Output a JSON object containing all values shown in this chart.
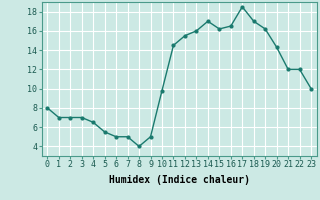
{
  "x": [
    0,
    1,
    2,
    3,
    4,
    5,
    6,
    7,
    8,
    9,
    10,
    11,
    12,
    13,
    14,
    15,
    16,
    17,
    18,
    19,
    20,
    21,
    22,
    23
  ],
  "y": [
    8,
    7,
    7,
    7,
    6.5,
    5.5,
    5,
    5,
    4,
    5,
    9.8,
    14.5,
    15.5,
    16,
    17,
    16.2,
    16.5,
    18.5,
    17,
    16.2,
    14.3,
    12,
    12,
    10
  ],
  "line_color": "#1a7a6e",
  "marker": "o",
  "marker_size": 2,
  "bg_color": "#cce9e4",
  "grid_color": "#ffffff",
  "xlabel": "Humidex (Indice chaleur)",
  "ylabel": "",
  "title": "",
  "xlim": [
    -0.5,
    23.5
  ],
  "ylim": [
    3,
    19
  ],
  "yticks": [
    4,
    6,
    8,
    10,
    12,
    14,
    16,
    18
  ],
  "xtick_labels": [
    "0",
    "1",
    "2",
    "3",
    "4",
    "5",
    "6",
    "7",
    "8",
    "9",
    "10",
    "11",
    "12",
    "13",
    "14",
    "15",
    "16",
    "17",
    "18",
    "19",
    "20",
    "21",
    "22",
    "23"
  ],
  "xlabel_fontsize": 7,
  "tick_fontsize": 6,
  "line_width": 1.0
}
